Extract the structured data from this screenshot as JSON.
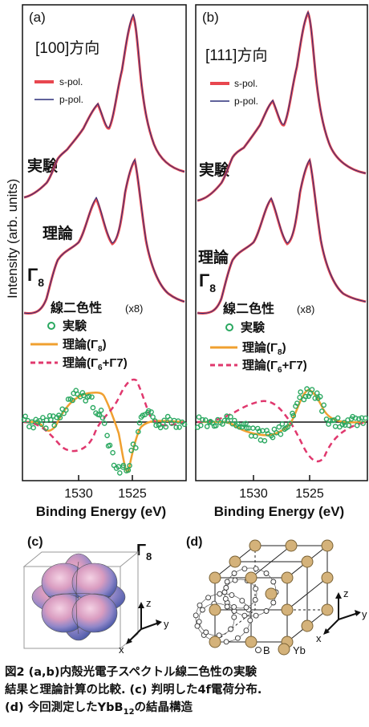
{
  "panel_a": {
    "label": "(a)",
    "direction": "[100]方向",
    "legend": [
      "s-pol.",
      "p-pol."
    ],
    "row_labels": [
      "実験",
      "理論"
    ],
    "gamma_label": "Γ",
    "gamma_sub": "8",
    "lcd_title": "線二色性",
    "lcd_scale": "(x8)",
    "lcd_legend": [
      {
        "text": "実験",
        "sub": "",
        "tail": ""
      },
      {
        "text": "理論(Γ",
        "sub": "8",
        "tail": ")"
      },
      {
        "text": "理論(Γ",
        "sub": "6",
        "tail": "+Γ7)"
      }
    ],
    "ticks": [
      "1530",
      "1525"
    ],
    "xlabel": "Binding Energy (eV)"
  },
  "panel_b": {
    "label": "(b)",
    "direction": "[111]方向",
    "legend": [
      "s-pol.",
      "p-pol."
    ],
    "row_labels": [
      "実験",
      "理論"
    ],
    "gamma_label": "Γ",
    "gamma_sub": "8",
    "lcd_title": "線二色性",
    "lcd_scale": "(x8)",
    "lcd_legend": [
      {
        "text": "実験",
        "sub": "",
        "tail": ""
      },
      {
        "text": "理論(Γ",
        "sub": "8",
        "tail": ")"
      },
      {
        "text": "理論(Γ",
        "sub": "6",
        "tail": "+Γ7)"
      }
    ],
    "ticks": [
      "1530",
      "1525"
    ],
    "xlabel": "Binding Energy (eV)"
  },
  "ylabel": "Intensity (arb. units)",
  "panel_c": {
    "label": "(c)",
    "gamma_label": "Γ",
    "gamma_sub": "8",
    "axes": [
      "z",
      "y",
      "x"
    ]
  },
  "panel_d": {
    "label": "(d)",
    "legend_b": "B",
    "legend_yb": "Yb",
    "axes": [
      "z",
      "y",
      "x"
    ]
  },
  "caption": {
    "line1": "図2 (a,b)内殻光電子スペクトル線二色性の実験",
    "line2": "結果と理論計算の比較. (c) 判明した4f電荷分布.",
    "line3_pre": "(d) 今回測定したYbB",
    "line3_sub": "12",
    "line3_post": "の結晶構造"
  },
  "colors": {
    "s_pol": "#e8474f",
    "p_pol": "#2b2f7a",
    "theory_g8": "#f0a030",
    "theory_g67": "#e0386e",
    "exp_points": "#2aa860",
    "sphere": "#e6a8c8",
    "b_atom": "#ffffff",
    "yb_atom": "#d4b27a"
  },
  "chart_data": [
    {
      "type": "line",
      "title": "[100]方向",
      "xlabel": "Binding Energy (eV)",
      "ylabel": "Intensity (arb. units)",
      "xlim": [
        1534,
        1522
      ],
      "series": [
        {
          "name": "s-pol.",
          "x": [
            1533.5,
            1531.8,
            1530.5,
            1528.3,
            1527.0,
            1526.0,
            1525.3,
            1524.5,
            1523.0,
            1522.0
          ],
          "y": [
            0.28,
            0.43,
            0.56,
            0.78,
            0.62,
            0.85,
            1.0,
            0.55,
            0.33,
            0.27
          ]
        },
        {
          "name": "p-pol.",
          "x": [
            1533.5,
            1531.8,
            1530.5,
            1528.3,
            1527.0,
            1526.0,
            1525.3,
            1524.5,
            1523.0,
            1522.0
          ],
          "y": [
            0.28,
            0.44,
            0.56,
            0.8,
            0.64,
            0.86,
            0.98,
            0.55,
            0.33,
            0.27
          ]
        }
      ]
    },
    {
      "type": "line",
      "title": "[111]方向",
      "xlabel": "Binding Energy (eV)",
      "ylabel": "Intensity (arb. units)",
      "xlim": [
        1534,
        1522
      ],
      "series": [
        {
          "name": "s-pol.",
          "x": [
            1533.5,
            1531.8,
            1530.5,
            1528.3,
            1527.0,
            1526.0,
            1525.3,
            1524.5,
            1523.0,
            1522.0
          ],
          "y": [
            0.28,
            0.43,
            0.56,
            0.8,
            0.63,
            0.86,
            1.0,
            0.55,
            0.33,
            0.27
          ]
        },
        {
          "name": "p-pol.",
          "x": [
            1533.5,
            1531.8,
            1530.5,
            1528.3,
            1527.0,
            1526.0,
            1525.3,
            1524.5,
            1523.0,
            1522.0
          ],
          "y": [
            0.28,
            0.43,
            0.56,
            0.8,
            0.63,
            0.86,
            0.99,
            0.55,
            0.33,
            0.27
          ]
        }
      ]
    }
  ]
}
